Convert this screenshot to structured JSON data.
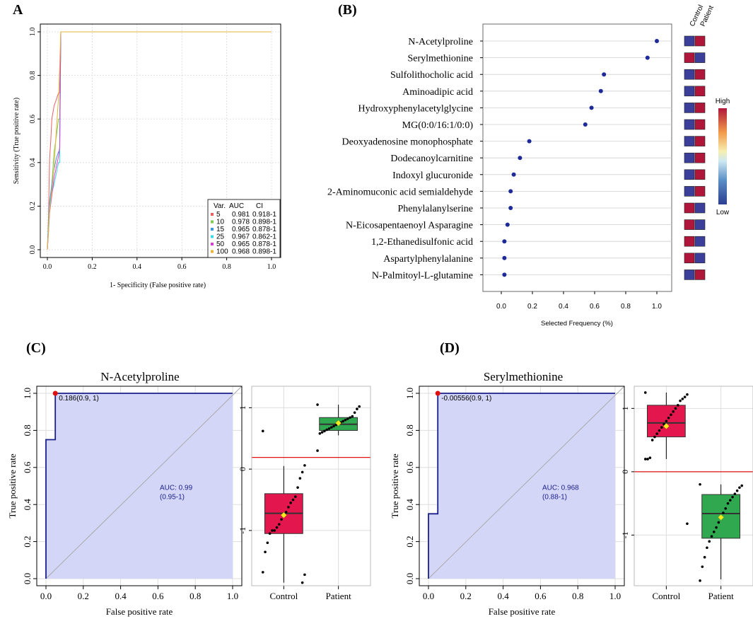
{
  "chart_data": [
    {
      "panel": "A",
      "type": "line",
      "xlabel": "1- Specificity (False positive rate)",
      "ylabel": "Sensitivity (True positive rate)",
      "xlim": [
        0,
        1
      ],
      "ylim": [
        0,
        1
      ],
      "xticks": [
        "0.0",
        "0.2",
        "0.4",
        "0.6",
        "0.8",
        "1.0"
      ],
      "yticks": [
        "0.0",
        "0.2",
        "0.4",
        "0.6",
        "0.8",
        "1.0"
      ],
      "legend": {
        "header": [
          "Var.",
          "AUC",
          "CI"
        ],
        "entries": [
          {
            "var": "5",
            "auc": "0.981",
            "ci": "0.918-1",
            "color": "#E8605F"
          },
          {
            "var": "10",
            "auc": "0.978",
            "ci": "0.898-1",
            "color": "#7CCB4F"
          },
          {
            "var": "15",
            "auc": "0.965",
            "ci": "0.878-1",
            "color": "#3A9BDC"
          },
          {
            "var": "25",
            "auc": "0.967",
            "ci": "0.862-1",
            "color": "#3FD7E3"
          },
          {
            "var": "50",
            "auc": "0.965",
            "ci": "0.878-1",
            "color": "#D63ECF"
          },
          {
            "var": "100",
            "auc": "0.968",
            "ci": "0.898-1",
            "color": "#E8B33A"
          }
        ]
      },
      "series": [
        {
          "name": "5",
          "color": "#E8605F",
          "x": [
            0,
            0.005,
            0.01,
            0.015,
            0.02,
            0.03,
            0.04,
            0.05,
            0.055,
            0.06,
            1.0
          ],
          "y": [
            0,
            0.15,
            0.42,
            0.5,
            0.6,
            0.66,
            0.69,
            0.72,
            0.72,
            1.0,
            1.0
          ]
        },
        {
          "name": "10",
          "color": "#7CCB4F",
          "x": [
            0,
            0.005,
            0.01,
            0.02,
            0.03,
            0.04,
            0.05,
            0.055,
            0.06,
            1.0
          ],
          "y": [
            0,
            0.12,
            0.2,
            0.3,
            0.45,
            0.52,
            0.6,
            0.6,
            1.0,
            1.0
          ]
        },
        {
          "name": "15",
          "color": "#3A9BDC",
          "x": [
            0,
            0.005,
            0.01,
            0.02,
            0.03,
            0.04,
            0.05,
            0.055,
            0.06,
            1.0
          ],
          "y": [
            0,
            0.1,
            0.22,
            0.3,
            0.37,
            0.42,
            0.45,
            0.45,
            1.0,
            1.0
          ]
        },
        {
          "name": "25",
          "color": "#3FD7E3",
          "x": [
            0,
            0.005,
            0.01,
            0.02,
            0.03,
            0.04,
            0.05,
            0.055,
            0.06,
            1.0
          ],
          "y": [
            0,
            0.1,
            0.2,
            0.26,
            0.3,
            0.35,
            0.4,
            0.4,
            1.0,
            1.0
          ]
        },
        {
          "name": "50",
          "color": "#D63ECF",
          "x": [
            0,
            0.005,
            0.01,
            0.02,
            0.03,
            0.04,
            0.05,
            0.055,
            0.06,
            1.0
          ],
          "y": [
            0,
            0.08,
            0.17,
            0.25,
            0.33,
            0.38,
            0.43,
            0.47,
            1.0,
            1.0
          ]
        },
        {
          "name": "100",
          "color": "#E8B33A",
          "x": [
            0,
            0.005,
            0.01,
            0.02,
            0.03,
            0.04,
            0.05,
            0.055,
            0.06,
            1.0
          ],
          "y": [
            0,
            0.08,
            0.18,
            0.27,
            0.38,
            0.55,
            0.7,
            0.84,
            1.0,
            1.0
          ]
        }
      ]
    },
    {
      "panel": "(B)",
      "type": "scatter",
      "xlabel": "Selected Frequency (%)",
      "xlim": [
        -0.1,
        1.1
      ],
      "xticks": [
        "0.0",
        "0.2",
        "0.4",
        "0.6",
        "0.8",
        "1.0"
      ],
      "heat_header": [
        "Control",
        "Patient"
      ],
      "colorbar": {
        "high": "High",
        "low": "Low"
      },
      "features": [
        {
          "name": "N-Acetylproline",
          "value": 1.0,
          "control": "low",
          "patient": "high"
        },
        {
          "name": "Serylmethionine",
          "value": 0.94,
          "control": "high",
          "patient": "low"
        },
        {
          "name": "Sulfolithocholic acid",
          "value": 0.66,
          "control": "low",
          "patient": "high"
        },
        {
          "name": "Aminoadipic acid",
          "value": 0.64,
          "control": "low",
          "patient": "high"
        },
        {
          "name": "Hydroxyphenylacetylglycine",
          "value": 0.58,
          "control": "low",
          "patient": "high"
        },
        {
          "name": "MG(0:0/16:1/0:0)",
          "value": 0.54,
          "control": "low",
          "patient": "high"
        },
        {
          "name": "Deoxyadenosine monophosphate",
          "value": 0.18,
          "control": "low",
          "patient": "high"
        },
        {
          "name": "Dodecanoylcarnitine",
          "value": 0.12,
          "control": "low",
          "patient": "high"
        },
        {
          "name": "Indoxyl glucuronide",
          "value": 0.08,
          "control": "low",
          "patient": "high"
        },
        {
          "name": "2-Aminomuconic acid semialdehyde",
          "value": 0.06,
          "control": "low",
          "patient": "high"
        },
        {
          "name": "Phenylalanylserine",
          "value": 0.06,
          "control": "high",
          "patient": "low"
        },
        {
          "name": "N-Eicosapentaenoyl Asparagine",
          "value": 0.04,
          "control": "high",
          "patient": "low"
        },
        {
          "name": "1,2-Ethanedisulfonic acid",
          "value": 0.02,
          "control": "high",
          "patient": "low"
        },
        {
          "name": "Aspartylphenylalanine",
          "value": 0.02,
          "control": "high",
          "patient": "low"
        },
        {
          "name": "N-Palmitoyl-L-glutamine",
          "value": 0.02,
          "control": "low",
          "patient": "high"
        }
      ]
    },
    {
      "panel": "(C)",
      "type": "line",
      "title": "N-Acetylproline",
      "xlabel": "False positive rate",
      "ylabel": "True positive rate",
      "xlim": [
        0,
        1
      ],
      "ylim": [
        0,
        1
      ],
      "xticks": [
        "0.0",
        "0.2",
        "0.4",
        "0.6",
        "0.8",
        "1.0"
      ],
      "yticks": [
        "0.0",
        "0.2",
        "0.4",
        "0.6",
        "0.8",
        "1.0"
      ],
      "roc": {
        "x": [
          0,
          0,
          0.05,
          0.05,
          1
        ],
        "y": [
          0,
          0.75,
          0.75,
          1,
          1
        ]
      },
      "cutoff_point": {
        "x": 0.05,
        "y": 1,
        "label": "0.186(0.9, 1)"
      },
      "auc_label": "AUC: 0.99",
      "ci_label": "(0.95-1)",
      "boxplot": {
        "ylim": [
          -1.9,
          1.35
        ],
        "yticks": [
          "1",
          "0",
          "-1"
        ],
        "ytick_values": [
          1,
          0,
          -1
        ],
        "threshold": 0.19,
        "groups": [
          {
            "name": "Control",
            "color": "#E3174D",
            "q1": -1.05,
            "median": -0.72,
            "q3": -0.4,
            "low": -1.85,
            "high": 0.05,
            "mean": -0.75,
            "points": [
              0.62,
              0.06,
              -0.05,
              -0.15,
              -0.3,
              -0.45,
              -0.5,
              -0.55,
              -0.62,
              -0.7,
              -0.75,
              -0.82,
              -0.9,
              -0.95,
              -1.0,
              -1.0,
              -1.05,
              -1.2,
              -1.35,
              -1.68,
              -1.72,
              -1.85
            ]
          },
          {
            "name": "Patient",
            "color": "#2FA84F",
            "q1": 0.63,
            "median": 0.73,
            "q3": 0.84,
            "low": 0.55,
            "high": 1.05,
            "mean": 0.75,
            "points": [
              1.05,
              1.02,
              0.98,
              0.92,
              0.86,
              0.84,
              0.82,
              0.8,
              0.78,
              0.76,
              0.74,
              0.72,
              0.7,
              0.68,
              0.66,
              0.64,
              0.62,
              0.6,
              0.58,
              0.3
            ]
          }
        ]
      }
    },
    {
      "panel": "(D)",
      "type": "line",
      "title": "Serylmethionine",
      "xlabel": "False positive rate",
      "ylabel": "True positive rate",
      "xlim": [
        0,
        1
      ],
      "ylim": [
        0,
        1
      ],
      "xticks": [
        "0.0",
        "0.2",
        "0.4",
        "0.6",
        "0.8",
        "1.0"
      ],
      "yticks": [
        "0.0",
        "0.2",
        "0.4",
        "0.6",
        "0.8",
        "1.0"
      ],
      "roc": {
        "x": [
          0,
          0,
          0.05,
          0.05,
          1
        ],
        "y": [
          0,
          0.35,
          0.35,
          1,
          1
        ]
      },
      "cutoff_point": {
        "x": 0.05,
        "y": 1,
        "label": "-0.00556(0.9, 1)"
      },
      "auc_label": "AUC: 0.968",
      "ci_label": "(0.88-1)",
      "boxplot": {
        "ylim": [
          -1.8,
          1.35
        ],
        "yticks": [
          "1",
          "0",
          "-1"
        ],
        "ytick_values": [
          1,
          0,
          -1
        ],
        "threshold": 0.0,
        "groups": [
          {
            "name": "Control",
            "color": "#E3174D",
            "q1": 0.55,
            "median": 0.77,
            "q3": 1.05,
            "low": 0.2,
            "high": 1.25,
            "mean": 0.72,
            "points": [
              1.25,
              1.22,
              1.18,
              1.15,
              1.12,
              1.05,
              1.0,
              0.95,
              0.9,
              0.85,
              0.8,
              0.75,
              0.7,
              0.65,
              0.6,
              0.55,
              0.5,
              0.22,
              0.2,
              0.2,
              -0.82
            ]
          },
          {
            "name": "Patient",
            "color": "#2FA84F",
            "q1": -1.05,
            "median": -0.66,
            "q3": -0.36,
            "low": -1.7,
            "high": -0.2,
            "mean": -0.72,
            "points": [
              -0.2,
              -0.22,
              -0.25,
              -0.3,
              -0.35,
              -0.4,
              -0.45,
              -0.5,
              -0.58,
              -0.65,
              -0.72,
              -0.8,
              -0.88,
              -0.95,
              -1.02,
              -1.1,
              -1.2,
              -1.35,
              -1.5,
              -1.72
            ]
          }
        ]
      }
    }
  ]
}
